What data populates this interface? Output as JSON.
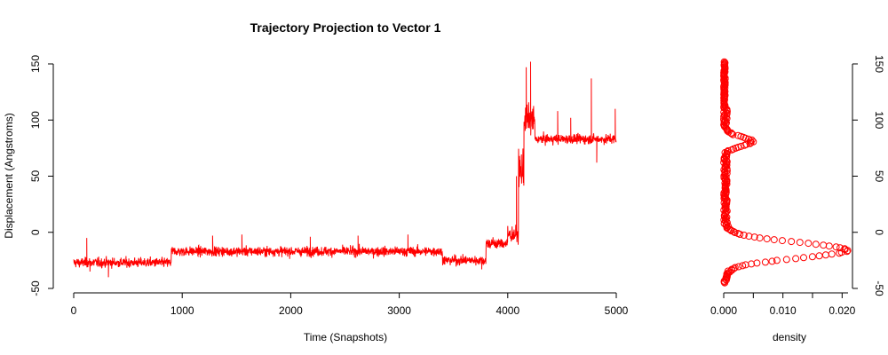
{
  "colors": {
    "series": "#ff0000",
    "axis": "#000000",
    "background": "#ffffff"
  },
  "chart_data": [
    {
      "type": "line",
      "title": "Trajectory Projection to Vector 1",
      "xlabel": "Time (Snapshots)",
      "ylabel": "Displacement (Angstroms)",
      "xlim": [
        0,
        5000
      ],
      "ylim": [
        -50,
        150
      ],
      "x_ticks": [
        "0",
        "1000",
        "2000",
        "3000",
        "4000",
        "5000"
      ],
      "y_ticks": [
        "-50",
        "0",
        "50",
        "100",
        "150"
      ],
      "grid": false,
      "legend": "none",
      "series": [
        {
          "color": "#ff0000",
          "segments": [
            {
              "x": [
                0,
                900
              ],
              "mean": -27,
              "noise": 5,
              "spikes": [
                [
                  120,
                  -5
                ],
                [
                  150,
                  -35
                ],
                [
                  320,
                  -40
                ]
              ]
            },
            {
              "x": [
                900,
                3400
              ],
              "mean": -17,
              "noise": 5,
              "spikes": [
                [
                  1280,
                  -3
                ],
                [
                  1550,
                  -2
                ],
                [
                  2180,
                  -4
                ],
                [
                  2620,
                  -3
                ],
                [
                  3080,
                  -2
                ]
              ]
            },
            {
              "x": [
                3400,
                3800
              ],
              "mean": -25,
              "noise": 5,
              "spikes": [
                [
                  3760,
                  -33
                ]
              ]
            },
            {
              "x": [
                3800,
                4000
              ],
              "mean": -10,
              "noise": 6,
              "spikes": []
            },
            {
              "x": [
                4000,
                4100
              ],
              "mean": -2,
              "noise": 8,
              "spikes": [
                [
                  4080,
                  50
                ]
              ]
            },
            {
              "x": [
                4100,
                4150
              ],
              "mean": 55,
              "noise": 20,
              "spikes": []
            },
            {
              "x": [
                4150,
                4250
              ],
              "mean": 100,
              "noise": 15,
              "spikes": [
                [
                  4170,
                  147
                ],
                [
                  4210,
                  152
                ]
              ]
            },
            {
              "x": [
                4250,
                5000
              ],
              "mean": 83,
              "noise": 5,
              "spikes": [
                [
                  4460,
                  108
                ],
                [
                  4580,
                  102
                ],
                [
                  4770,
                  137
                ],
                [
                  4820,
                  62
                ],
                [
                  4990,
                  110
                ]
              ]
            }
          ]
        }
      ]
    },
    {
      "type": "scatter",
      "xlabel": "density",
      "xlim": [
        0,
        0.021
      ],
      "ylim": [
        -50,
        150
      ],
      "x_ticks": [
        "0.000",
        "0.010",
        "0.020"
      ],
      "y_ticks": [
        "-50",
        "0",
        "50",
        "100",
        "150"
      ],
      "grid": false,
      "legend": "none",
      "y_range": [
        -45,
        152
      ],
      "peaks": [
        {
          "center": -16,
          "height": 0.0205,
          "width": 7
        },
        {
          "center": 81,
          "height": 0.0045,
          "width": 4
        }
      ],
      "baseline_wiggle": 0.0006,
      "marker": "open-circle",
      "color": "#ff0000"
    }
  ]
}
